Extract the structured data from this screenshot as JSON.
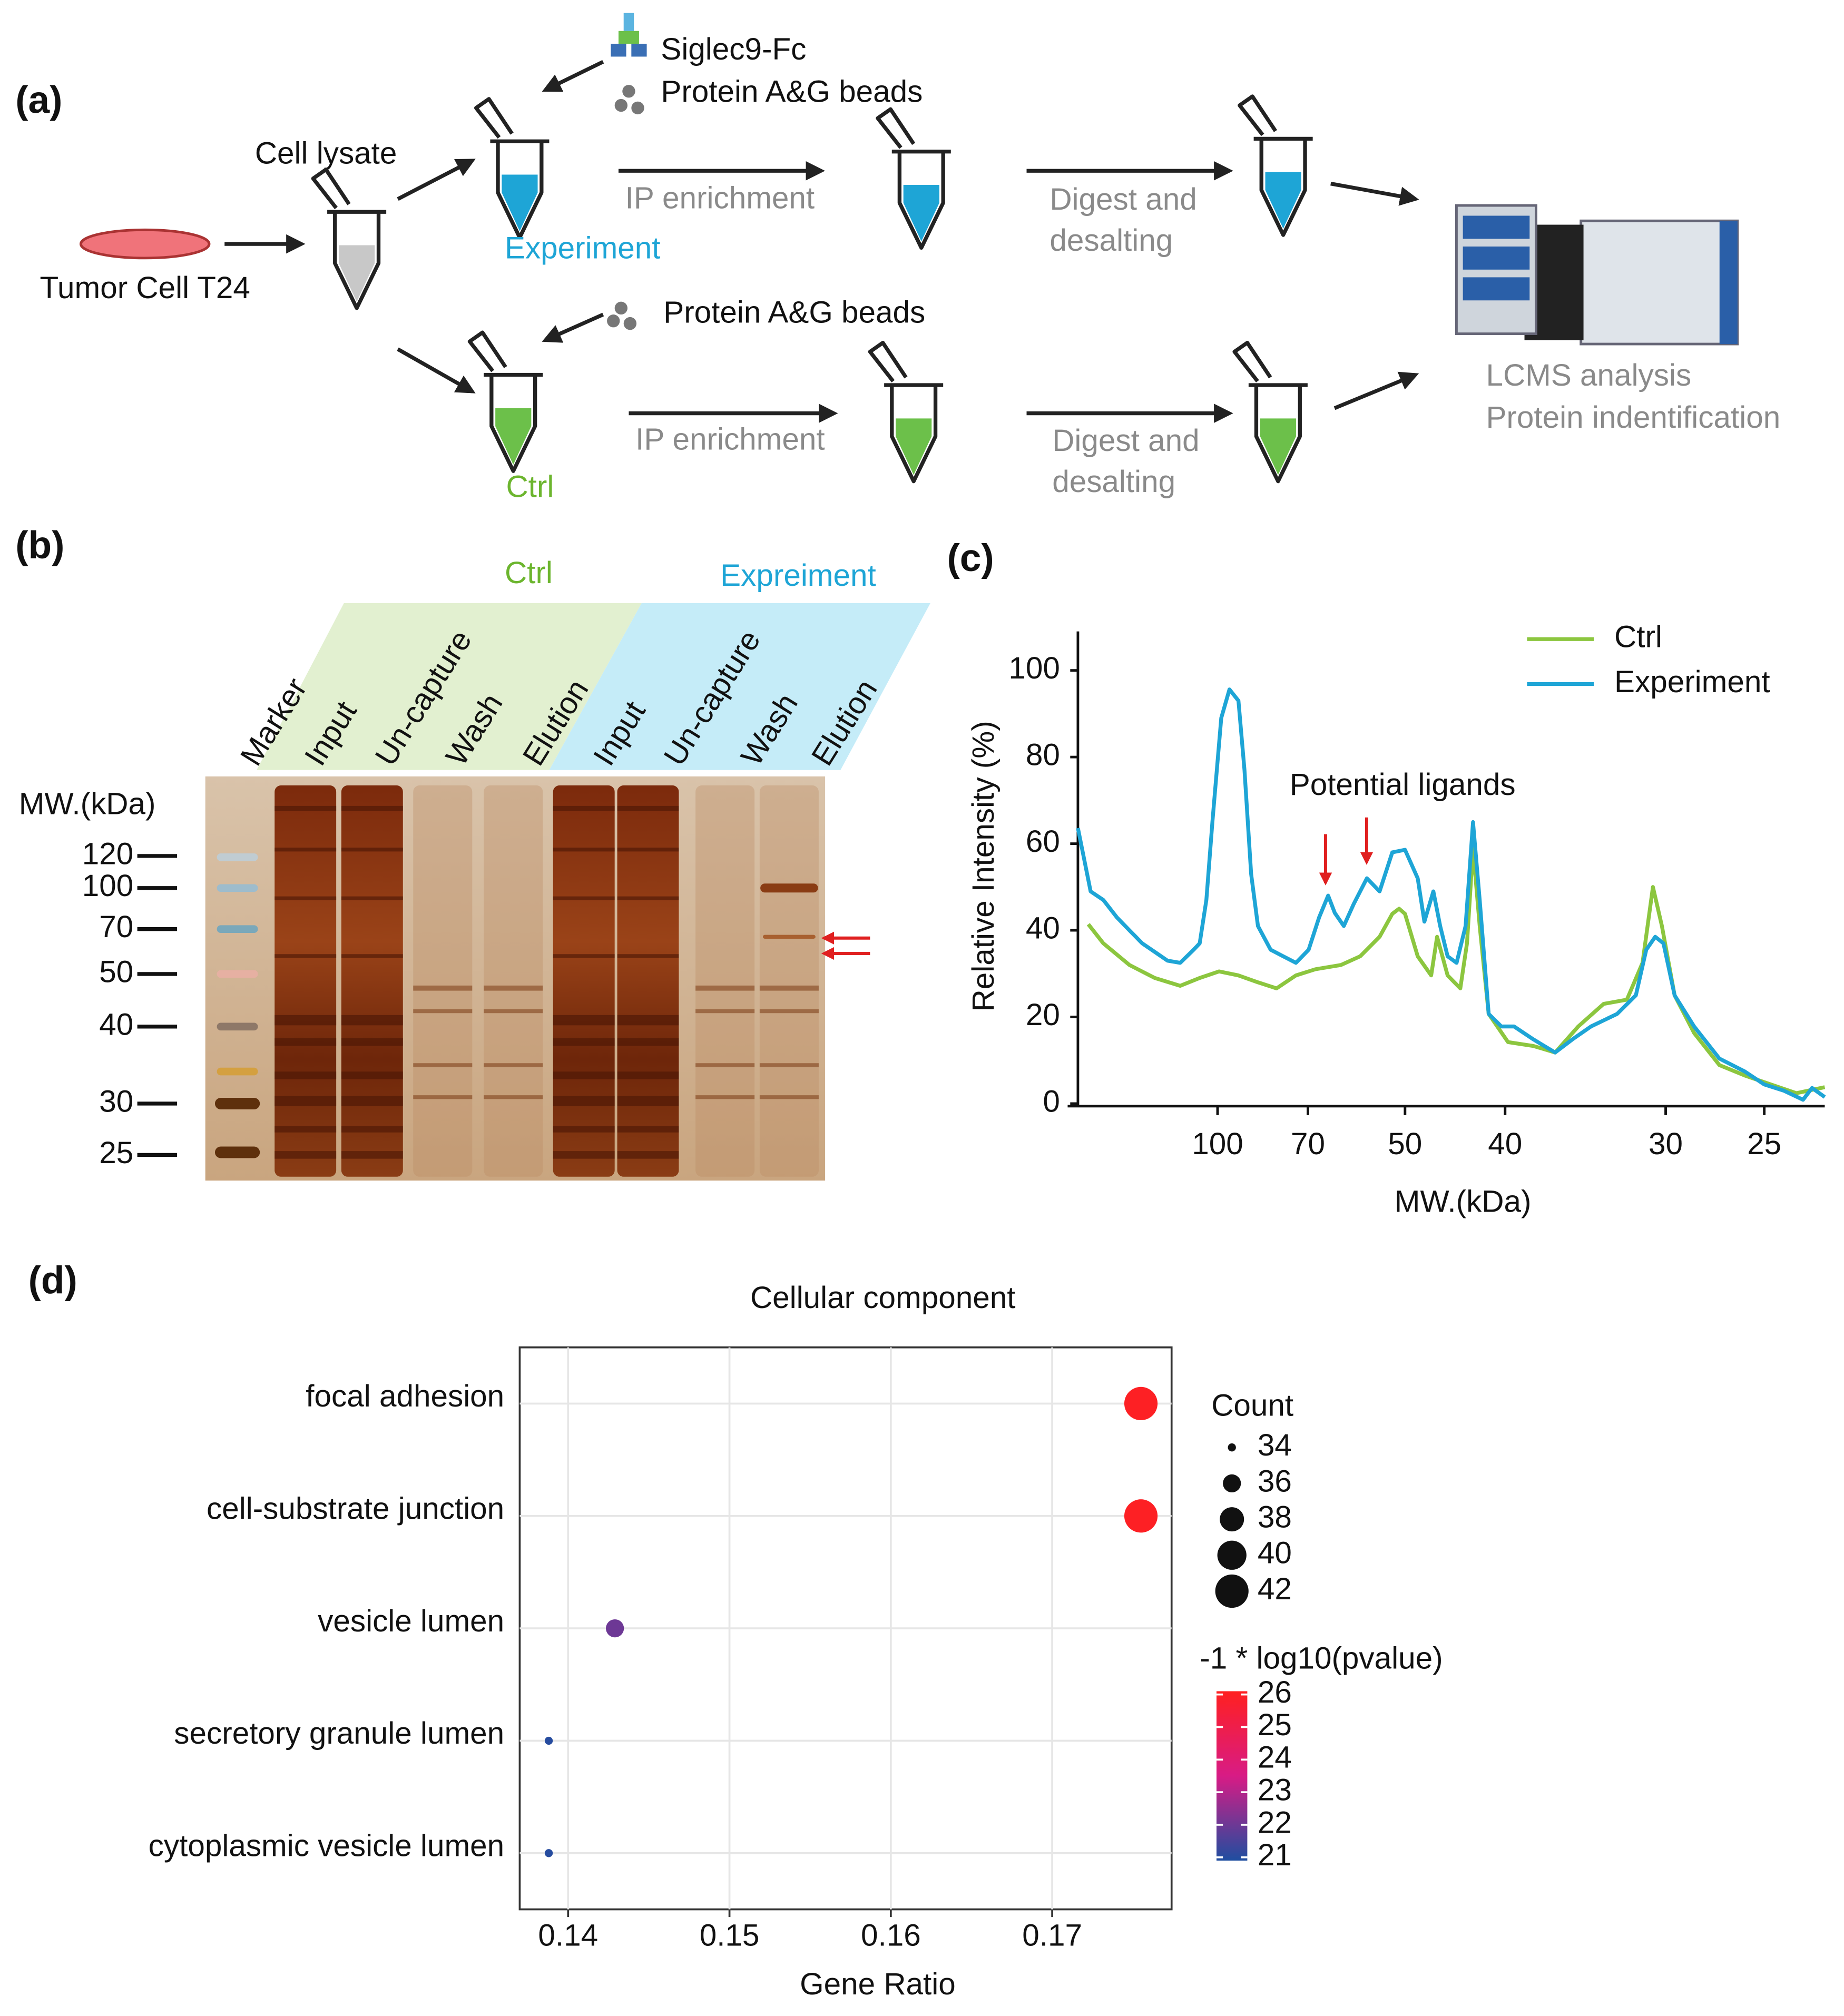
{
  "panel_a": {
    "label": "(a)",
    "siglec": "Siglec9-Fc",
    "beads_top": "Protein A&G beads",
    "cell_lysate": "Cell lysate",
    "tumor_cell": "Tumor Cell T24",
    "experiment": "Experiment",
    "ip_top": "IP enrichment",
    "digest_top": [
      "Digest and",
      "desalting"
    ],
    "beads_bottom": "Protein A&G beads",
    "ctrl": "Ctrl",
    "ip_bottom": "IP enrichment",
    "digest_bottom": [
      "Digest and",
      "desalting"
    ],
    "lcms": [
      "LCMS analysis",
      "Protein indentification"
    ]
  },
  "panel_b": {
    "label": "(b)",
    "groups": [
      "Ctrl",
      "Expreiment"
    ],
    "lanes": [
      "Marker",
      "Input",
      "Un-capture",
      "Wash",
      "Elution",
      "Input",
      "Un-capture",
      "Wash",
      "Elution"
    ],
    "mw_title": "MW.(kDa)",
    "mw_markers": [
      120,
      100,
      70,
      50,
      40,
      30,
      25
    ]
  },
  "chart_data": [
    {
      "type": "line",
      "panel_label": "(c)",
      "y_label": "Relative Intensity (%)",
      "x_label": "MW.(kDa)",
      "annotation": "Potential ligands",
      "xlim": [
        0,
        1
      ],
      "xticks": [
        {
          "value": 0.187,
          "label": "100"
        },
        {
          "value": 0.308,
          "label": "70"
        },
        {
          "value": 0.438,
          "label": "50"
        },
        {
          "value": 0.572,
          "label": "40"
        },
        {
          "value": 0.787,
          "label": "30"
        },
        {
          "value": 0.919,
          "label": "25"
        }
      ],
      "ylim": [
        0,
        109
      ],
      "yticks": [
        0,
        20,
        40,
        60,
        80,
        100
      ],
      "legend": "upper right",
      "series": [
        {
          "name": "Ctrl",
          "color": "#8cc63f",
          "x": [
            0.014,
            0.034,
            0.069,
            0.103,
            0.137,
            0.163,
            0.189,
            0.215,
            0.241,
            0.266,
            0.292,
            0.318,
            0.352,
            0.378,
            0.404,
            0.421,
            0.43,
            0.438,
            0.455,
            0.473,
            0.481,
            0.495,
            0.512,
            0.521,
            0.529,
            0.538,
            0.55,
            0.576,
            0.61,
            0.639,
            0.67,
            0.704,
            0.735,
            0.756,
            0.77,
            0.782,
            0.799,
            0.825,
            0.859,
            0.893,
            0.928,
            0.962,
            1.0
          ],
          "values": [
            41.4,
            37,
            32,
            29,
            27.2,
            29,
            30.5,
            29.6,
            28,
            26.6,
            29.6,
            31,
            32,
            34,
            38.5,
            43.8,
            45,
            43.8,
            34,
            29.6,
            38.5,
            29.6,
            26.6,
            37,
            59,
            41,
            20.7,
            14.2,
            13.3,
            11.8,
            17.8,
            23,
            24,
            32.5,
            50,
            41,
            25,
            16.3,
            8.9,
            6.5,
            4.4,
            2.4,
            3.8
          ]
        },
        {
          "name": "Experiment",
          "color": "#1ea5d6",
          "x": [
            0,
            0.017,
            0.034,
            0.052,
            0.069,
            0.086,
            0.103,
            0.12,
            0.137,
            0.155,
            0.163,
            0.172,
            0.18,
            0.192,
            0.203,
            0.215,
            0.223,
            0.232,
            0.241,
            0.258,
            0.275,
            0.292,
            0.309,
            0.323,
            0.335,
            0.344,
            0.356,
            0.369,
            0.387,
            0.404,
            0.421,
            0.438,
            0.455,
            0.464,
            0.476,
            0.485,
            0.495,
            0.507,
            0.519,
            0.529,
            0.538,
            0.55,
            0.567,
            0.584,
            0.61,
            0.639,
            0.662,
            0.687,
            0.722,
            0.747,
            0.761,
            0.773,
            0.784,
            0.799,
            0.825,
            0.859,
            0.893,
            0.919,
            0.945,
            0.971,
            0.983,
            1.0
          ],
          "values": [
            63.6,
            49,
            47,
            43,
            40,
            37,
            35,
            33,
            32.5,
            35.5,
            37,
            47,
            65,
            89,
            95.6,
            93,
            77,
            53,
            41,
            35.5,
            34,
            32.5,
            35.5,
            43,
            48,
            44,
            41,
            46,
            52,
            49,
            58,
            58.6,
            52,
            42,
            49,
            41,
            34,
            32.5,
            41,
            65,
            47,
            20.7,
            17.8,
            17.8,
            14.8,
            11.8,
            14.8,
            17.8,
            20.7,
            25,
            35.5,
            38.5,
            37,
            25,
            17.8,
            10.4,
            7.4,
            4.4,
            3,
            0.9,
            3.6,
            1.5
          ]
        }
      ]
    },
    {
      "type": "scatter",
      "panel_label": "(d)",
      "title": "Cellular component",
      "x_label": "Gene Ratio",
      "categories": [
        "focal adhesion",
        "cell-substrate junction",
        "vesicle lumen",
        "secretory granule lumen",
        "cytoplasmic vesicle lumen"
      ],
      "x": [
        0.1755,
        0.1755,
        0.1429,
        0.1388,
        0.1388
      ],
      "sizes": [
        42,
        42,
        36,
        34,
        34
      ],
      "color_values": [
        26,
        26,
        22,
        21,
        21
      ],
      "xlim": [
        0.137,
        0.1774
      ],
      "xticks": [
        0.14,
        0.15,
        0.16,
        0.17
      ],
      "grid": true,
      "size_title": "Count",
      "size_ticks": [
        34,
        36,
        38,
        40,
        42
      ],
      "color_title": "-1 * log10(pvalue)",
      "color_ticks": [
        21,
        22,
        23,
        24,
        25,
        26
      ],
      "clim": [
        20.9,
        26.1
      ],
      "colormap": [
        "#1f4ea0",
        "#d81b85",
        "#ff2020"
      ]
    }
  ]
}
